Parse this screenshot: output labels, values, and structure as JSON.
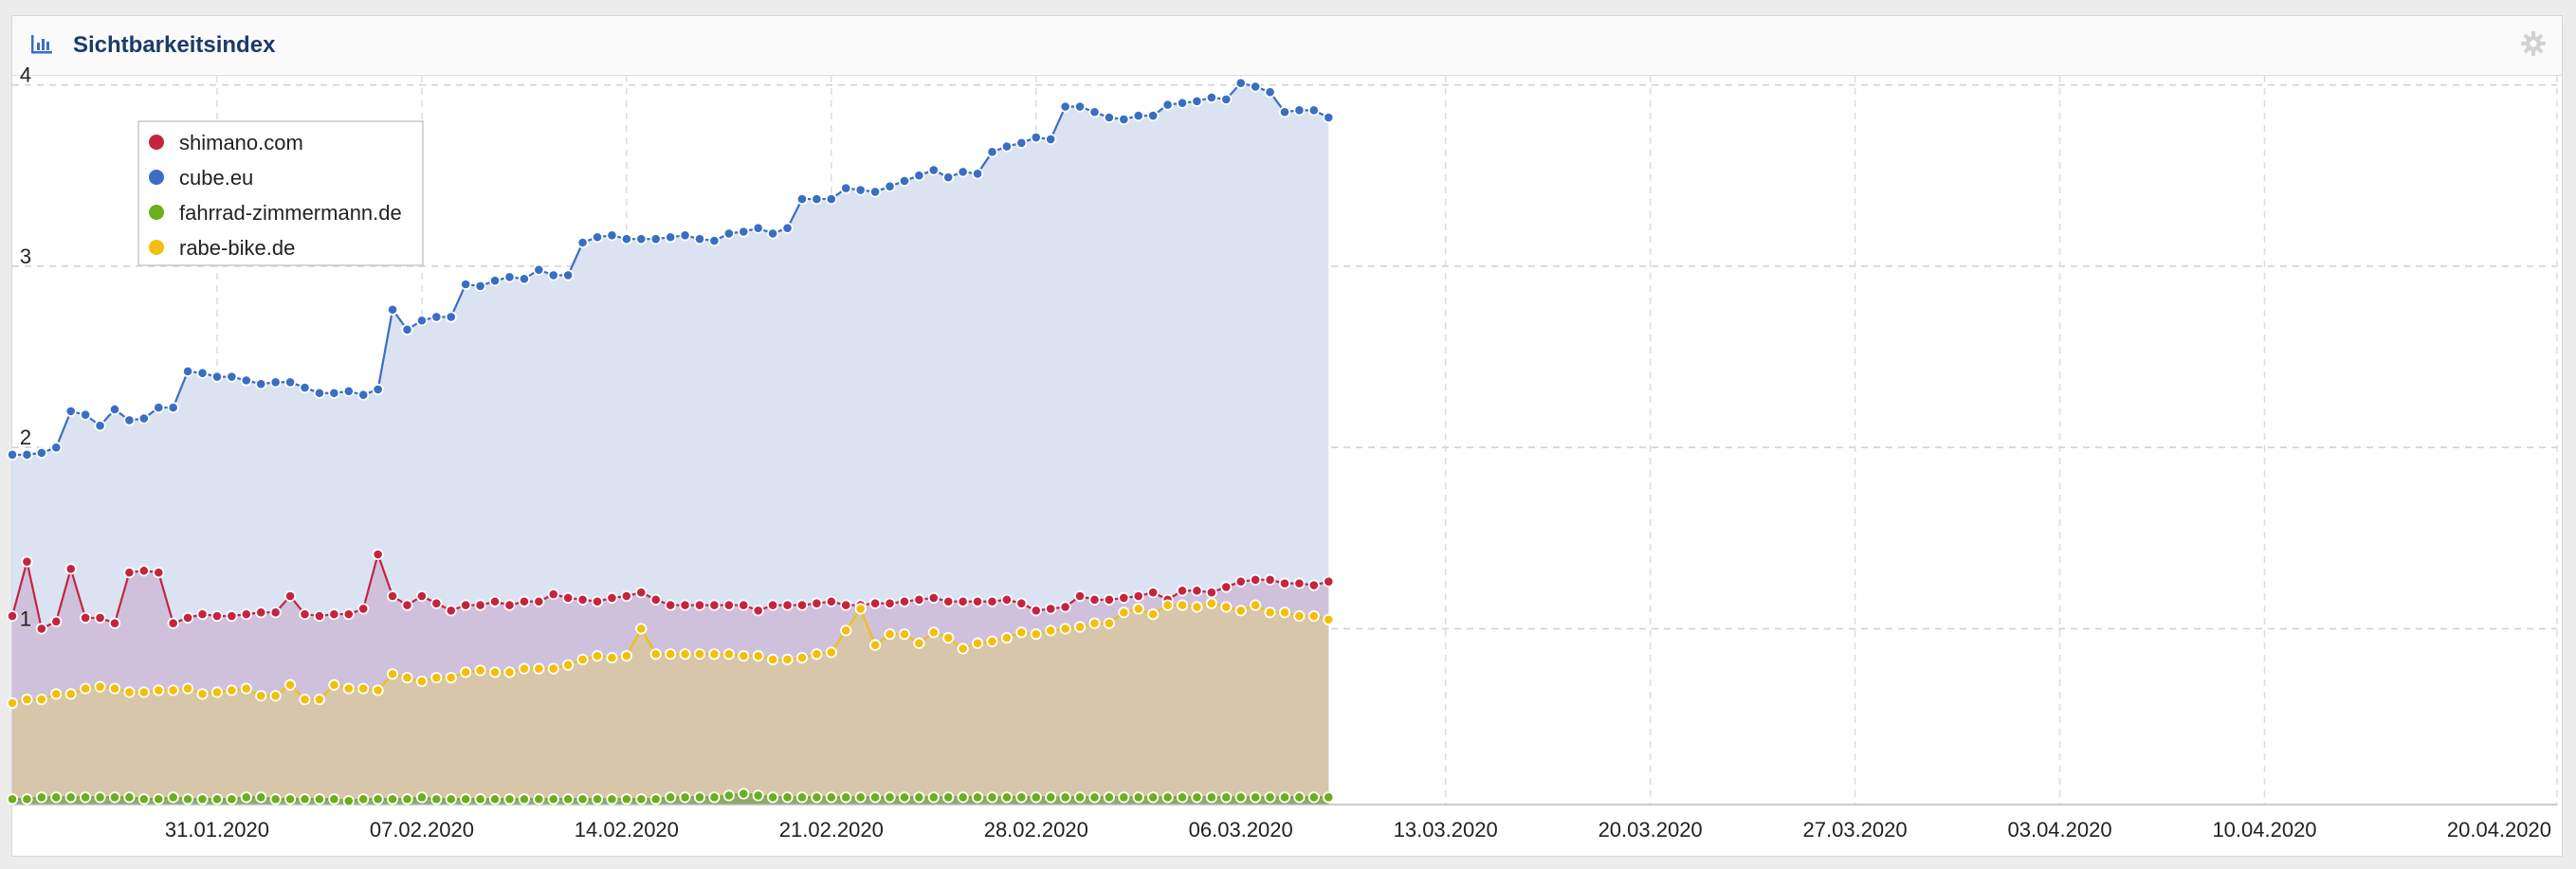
{
  "panel": {
    "title": "Sichtbarkeitsindex"
  },
  "chart_data": {
    "type": "area",
    "title": "Sichtbarkeitsindex",
    "xlabel": "",
    "ylabel": "",
    "ylim": [
      0.03,
      4.05
    ],
    "yticks": [
      1,
      2,
      3,
      4
    ],
    "grid": true,
    "legend_position": "top-left",
    "x_start": "2020-01-24",
    "x_end": "2020-04-20",
    "x_step_days": 0.5,
    "xticks": [
      "31.01.2020",
      "07.02.2020",
      "14.02.2020",
      "21.02.2020",
      "28.02.2020",
      "06.03.2020",
      "13.03.2020",
      "20.03.2020",
      "27.03.2020",
      "03.04.2020",
      "10.04.2020",
      "20.04.2020"
    ],
    "series": [
      {
        "name": "cube.eu",
        "color": "#3a6ec4",
        "fill": "#dbe3f3",
        "values": [
          1.96,
          1.96,
          1.97,
          2.0,
          2.2,
          2.18,
          2.12,
          2.21,
          2.15,
          2.16,
          2.22,
          2.22,
          2.42,
          2.41,
          2.39,
          2.39,
          2.37,
          2.35,
          2.36,
          2.36,
          2.33,
          2.3,
          2.3,
          2.31,
          2.29,
          2.32,
          2.76,
          2.65,
          2.7,
          2.72,
          2.72,
          2.9,
          2.89,
          2.92,
          2.94,
          2.93,
          2.98,
          2.95,
          2.95,
          3.13,
          3.16,
          3.17,
          3.15,
          3.15,
          3.15,
          3.16,
          3.17,
          3.15,
          3.14,
          3.18,
          3.19,
          3.21,
          3.18,
          3.21,
          3.37,
          3.37,
          3.37,
          3.43,
          3.42,
          3.41,
          3.44,
          3.47,
          3.5,
          3.53,
          3.49,
          3.52,
          3.51,
          3.63,
          3.66,
          3.68,
          3.71,
          3.7,
          3.88,
          3.88,
          3.85,
          3.82,
          3.81,
          3.83,
          3.83,
          3.89,
          3.9,
          3.91,
          3.93,
          3.92,
          4.01,
          3.99,
          3.96,
          3.85,
          3.86,
          3.86,
          3.82
        ]
      },
      {
        "name": "shimano.com",
        "color": "#c5243f",
        "fill": "#cfc1dc",
        "values": [
          1.07,
          1.37,
          1.0,
          1.04,
          1.33,
          1.06,
          1.06,
          1.03,
          1.31,
          1.32,
          1.31,
          1.03,
          1.06,
          1.08,
          1.07,
          1.07,
          1.08,
          1.09,
          1.09,
          1.18,
          1.08,
          1.07,
          1.08,
          1.08,
          1.11,
          1.41,
          1.18,
          1.13,
          1.18,
          1.14,
          1.1,
          1.13,
          1.13,
          1.15,
          1.13,
          1.15,
          1.15,
          1.19,
          1.17,
          1.16,
          1.15,
          1.17,
          1.18,
          1.2,
          1.16,
          1.13,
          1.13,
          1.13,
          1.13,
          1.13,
          1.13,
          1.1,
          1.13,
          1.13,
          1.13,
          1.14,
          1.15,
          1.13,
          1.13,
          1.14,
          1.14,
          1.15,
          1.16,
          1.17,
          1.15,
          1.15,
          1.15,
          1.15,
          1.16,
          1.14,
          1.1,
          1.11,
          1.12,
          1.18,
          1.16,
          1.16,
          1.17,
          1.18,
          1.2,
          1.16,
          1.21,
          1.21,
          1.2,
          1.23,
          1.26,
          1.27,
          1.27,
          1.25,
          1.25,
          1.24,
          1.26
        ]
      },
      {
        "name": "rabe-bike.de",
        "color": "#f2c00c",
        "fill": "#d8c6ab",
        "values": [
          0.59,
          0.61,
          0.61,
          0.64,
          0.64,
          0.67,
          0.68,
          0.67,
          0.65,
          0.65,
          0.66,
          0.66,
          0.67,
          0.64,
          0.65,
          0.66,
          0.67,
          0.63,
          0.63,
          0.69,
          0.61,
          0.61,
          0.69,
          0.67,
          0.67,
          0.66,
          0.75,
          0.73,
          0.71,
          0.73,
          0.73,
          0.76,
          0.77,
          0.76,
          0.76,
          0.78,
          0.78,
          0.78,
          0.8,
          0.83,
          0.85,
          0.84,
          0.85,
          1.0,
          0.86,
          0.86,
          0.86,
          0.86,
          0.86,
          0.86,
          0.85,
          0.85,
          0.83,
          0.83,
          0.84,
          0.86,
          0.87,
          0.99,
          1.11,
          0.91,
          0.97,
          0.97,
          0.92,
          0.98,
          0.95,
          0.89,
          0.92,
          0.93,
          0.95,
          0.98,
          0.97,
          0.99,
          1.0,
          1.01,
          1.03,
          1.03,
          1.09,
          1.11,
          1.08,
          1.13,
          1.13,
          1.12,
          1.14,
          1.12,
          1.1,
          1.13,
          1.09,
          1.09,
          1.07,
          1.07,
          1.05
        ]
      },
      {
        "name": "fahrrad-zimmermann.de",
        "color": "#6bae1e",
        "fill": "#8fa86c",
        "values": [
          0.06,
          0.06,
          0.07,
          0.07,
          0.07,
          0.07,
          0.07,
          0.07,
          0.07,
          0.06,
          0.06,
          0.07,
          0.06,
          0.06,
          0.06,
          0.06,
          0.07,
          0.07,
          0.06,
          0.06,
          0.06,
          0.06,
          0.06,
          0.05,
          0.06,
          0.06,
          0.06,
          0.06,
          0.07,
          0.06,
          0.06,
          0.06,
          0.06,
          0.06,
          0.06,
          0.06,
          0.06,
          0.06,
          0.06,
          0.06,
          0.06,
          0.06,
          0.06,
          0.06,
          0.06,
          0.07,
          0.07,
          0.07,
          0.07,
          0.08,
          0.09,
          0.08,
          0.07,
          0.07,
          0.07,
          0.07,
          0.07,
          0.07,
          0.07,
          0.07,
          0.07,
          0.07,
          0.07,
          0.07,
          0.07,
          0.07,
          0.07,
          0.07,
          0.07,
          0.07,
          0.07,
          0.07,
          0.07,
          0.07,
          0.07,
          0.07,
          0.07,
          0.07,
          0.07,
          0.07,
          0.07,
          0.07,
          0.07,
          0.07,
          0.07,
          0.07,
          0.07,
          0.07,
          0.07,
          0.07,
          0.07
        ]
      }
    ],
    "legend": [
      "shimano.com",
      "cube.eu",
      "fahrrad-zimmermann.de",
      "rabe-bike.de"
    ]
  }
}
